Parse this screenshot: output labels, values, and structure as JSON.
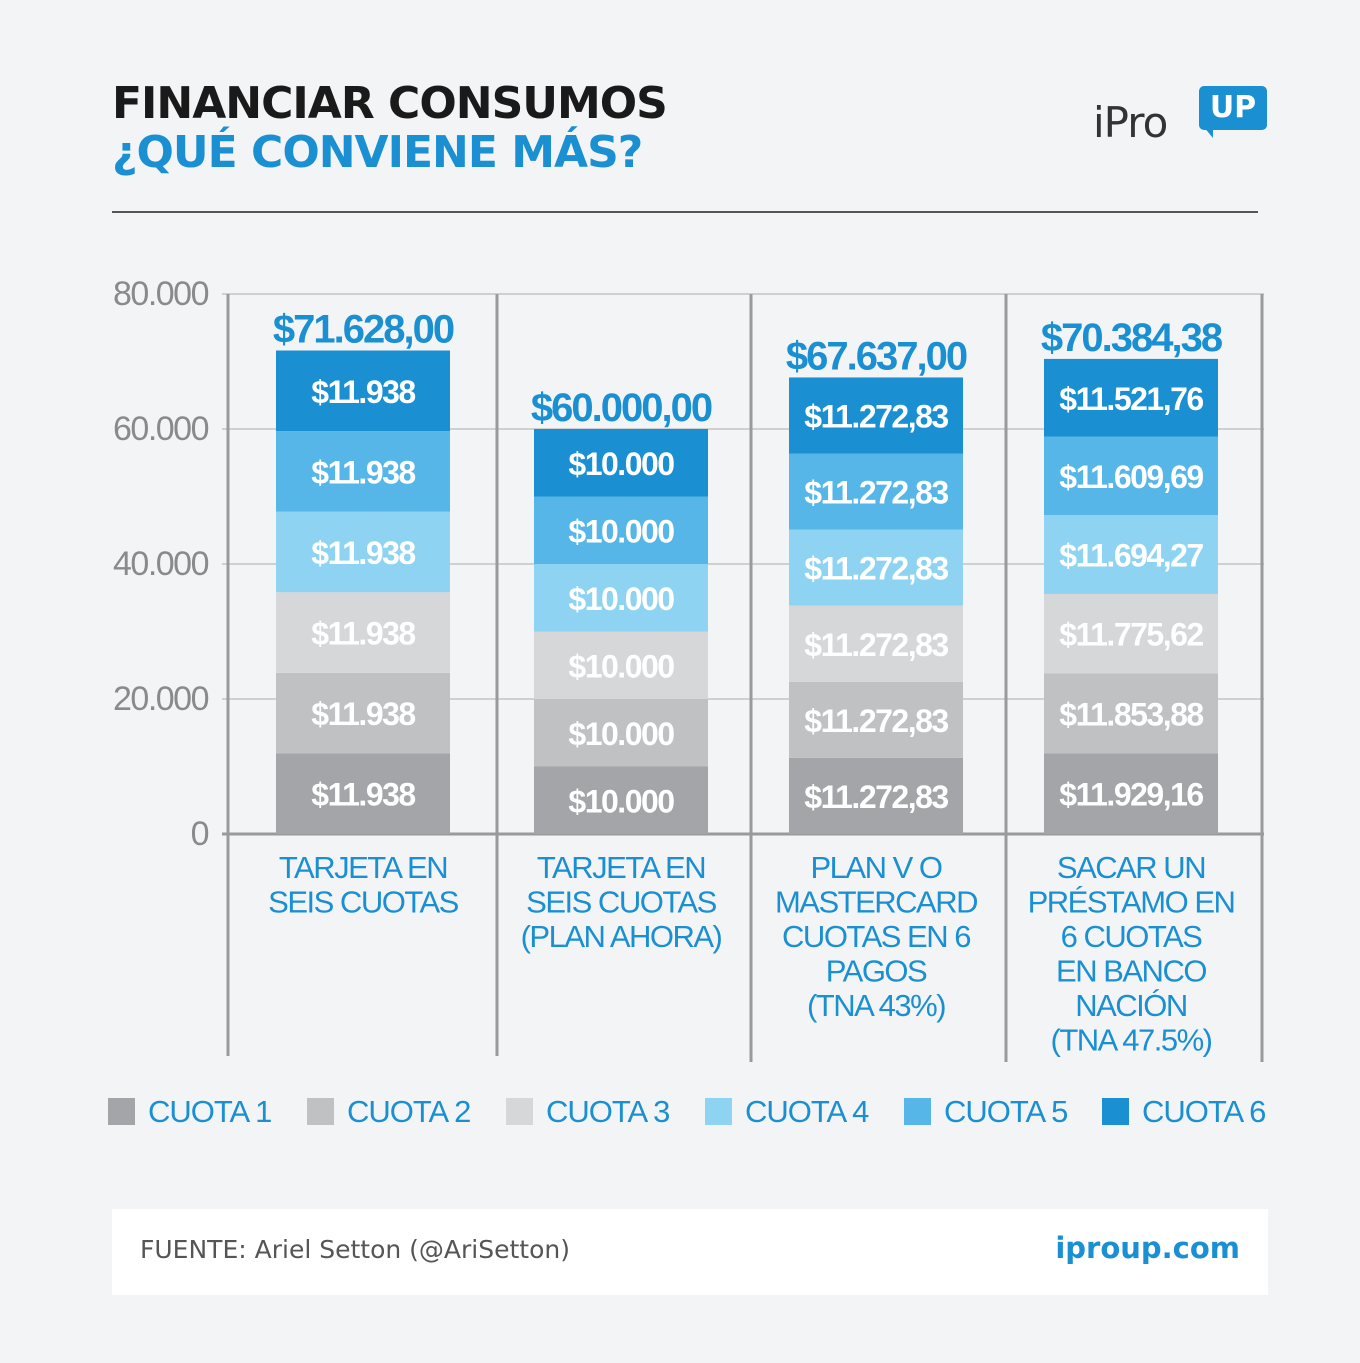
{
  "header": {
    "title_line1": "FINANCIAR CONSUMOS",
    "title_line2": "¿QUÉ CONVIENE MÁS?"
  },
  "logo": {
    "text": "iPro",
    "badge": "UP"
  },
  "colors": {
    "title_blue": "#1a8fd2",
    "series": [
      "#a3a5a8",
      "#bfc1c3",
      "#d6d7d9",
      "#8fd3f3",
      "#56b6e8",
      "#1a8fd2"
    ]
  },
  "chart_data": {
    "type": "bar",
    "stacked": true,
    "ylim": [
      0,
      80000
    ],
    "yticks": [
      "0",
      "20.000",
      "40.000",
      "60.000",
      "80.000"
    ],
    "grid": true,
    "legend_position": "bottom",
    "categories": [
      [
        "TARJETA EN",
        "SEIS CUOTAS"
      ],
      [
        "TARJETA EN",
        "SEIS CUOTAS",
        "(PLAN AHORA)"
      ],
      [
        "PLAN V O",
        "MASTERCARD",
        "CUOTAS EN 6",
        "PAGOS",
        "(TNA 43%)"
      ],
      [
        "SACAR UN",
        "PRÉSTAMO EN",
        "6 CUOTAS",
        "EN BANCO",
        "NACIÓN",
        "(TNA 47.5%)"
      ]
    ],
    "totals": [
      "$71.628,00",
      "$60.000,00",
      "$67.637,00",
      "$70.384,38"
    ],
    "series": [
      {
        "name": "CUOTA 1",
        "values": [
          11938,
          10000,
          11272.83,
          11929.16
        ],
        "labels": [
          "$11.938",
          "$10.000",
          "$11.272,83",
          "$11.929,16"
        ]
      },
      {
        "name": "CUOTA 2",
        "values": [
          11938,
          10000,
          11272.83,
          11853.88
        ],
        "labels": [
          "$11.938",
          "$10.000",
          "$11.272,83",
          "$11.853,88"
        ]
      },
      {
        "name": "CUOTA 3",
        "values": [
          11938,
          10000,
          11272.83,
          11775.62
        ],
        "labels": [
          "$11.938",
          "$10.000",
          "$11.272,83",
          "$11.775,62"
        ]
      },
      {
        "name": "CUOTA 4",
        "values": [
          11938,
          10000,
          11272.83,
          11694.27
        ],
        "labels": [
          "$11.938",
          "$10.000",
          "$11.272,83",
          "$11.694,27"
        ]
      },
      {
        "name": "CUOTA 5",
        "values": [
          11938,
          10000,
          11272.83,
          11609.69
        ],
        "labels": [
          "$11.938",
          "$10.000",
          "$11.272,83",
          "$11.609,69"
        ]
      },
      {
        "name": "CUOTA 6",
        "values": [
          11938,
          10000,
          11272.83,
          11521.76
        ],
        "labels": [
          "$11.938",
          "$10.000",
          "$11.272,83",
          "$11.521,76"
        ]
      }
    ]
  },
  "footer": {
    "source": "FUENTE: Ariel Setton (@AriSetton)",
    "url": "iproup.com"
  }
}
